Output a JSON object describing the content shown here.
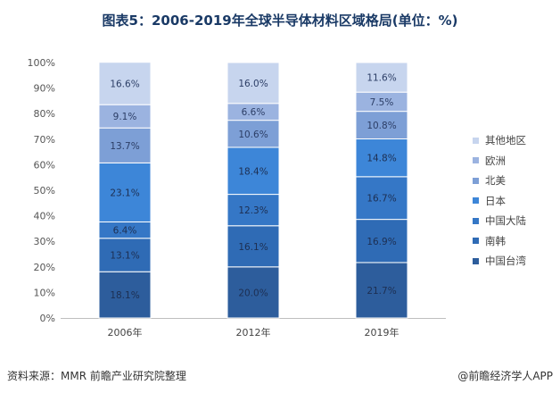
{
  "title": "图表5：2006-2019年全球半导体材料区域格局(单位：%)",
  "source": "资料来源：MMR 前瞻产业研究院整理",
  "brand": "@前瞻经济学人APP",
  "chart_data": {
    "type": "bar",
    "stacked": true,
    "categories": [
      "2006年",
      "2012年",
      "2019年"
    ],
    "ylim": [
      0,
      100
    ],
    "yticks": [
      "0%",
      "10%",
      "20%",
      "30%",
      "40%",
      "50%",
      "60%",
      "70%",
      "80%",
      "90%",
      "100%"
    ],
    "legend_position": "right",
    "series": [
      {
        "name": "中国台湾",
        "color": "#2d5d9c",
        "values": [
          18.1,
          20.0,
          21.7
        ]
      },
      {
        "name": "南韩",
        "color": "#2f6bb5",
        "values": [
          13.1,
          16.1,
          16.9
        ]
      },
      {
        "name": "中国大陆",
        "color": "#3577c6",
        "values": [
          6.4,
          12.3,
          16.7
        ]
      },
      {
        "name": "日本",
        "color": "#3d86d8",
        "values": [
          23.1,
          18.4,
          14.8
        ]
      },
      {
        "name": "北美",
        "color": "#7d9fd6",
        "values": [
          13.7,
          10.6,
          10.8
        ]
      },
      {
        "name": "欧洲",
        "color": "#9bb3e0",
        "values": [
          9.1,
          6.6,
          7.5
        ]
      },
      {
        "name": "其他地区",
        "color": "#c7d5ee",
        "values": [
          16.6,
          16.0,
          11.6
        ]
      }
    ],
    "data_labels": [
      [
        "18.1%",
        "20.0%",
        "21.7%"
      ],
      [
        "13.1%",
        "16.1%",
        "16.9%"
      ],
      [
        "6.4%",
        "12.3%",
        "16.7%"
      ],
      [
        "23.1%",
        "18.4%",
        "14.8%"
      ],
      [
        "13.7%",
        "10.6%",
        "10.8%"
      ],
      [
        "9.1%",
        "6.6%",
        "7.5%"
      ],
      [
        "16.6%",
        "16.0%",
        "11.6%"
      ]
    ]
  }
}
